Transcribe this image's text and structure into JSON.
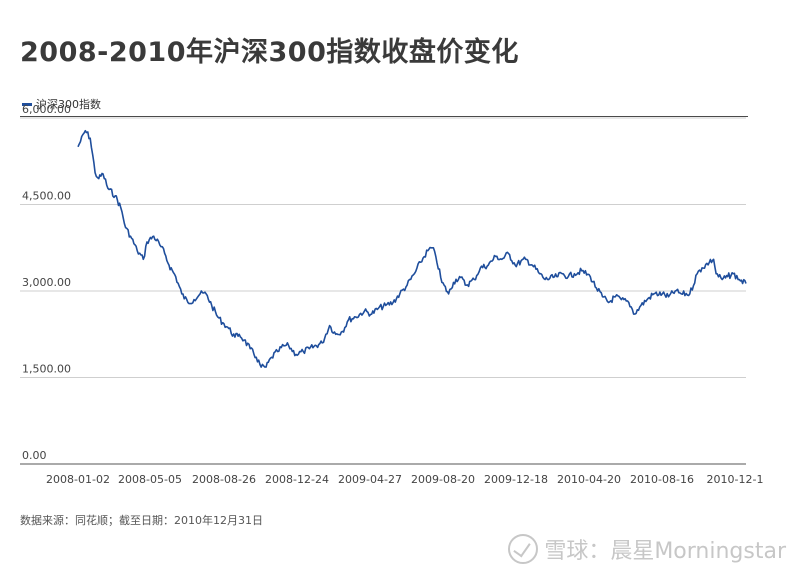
{
  "title": "2008-2010年沪深300指数收盘价变化",
  "source": "数据来源：同花顺；截至日期：2010年12月31日",
  "watermark": "雪球：晨星Morningstar",
  "chart_data": {
    "type": "line",
    "title": "2008-2010年沪深300指数收盘价变化",
    "xlabel": "",
    "ylabel": "",
    "ylim": [
      0,
      6000
    ],
    "yticks": [
      0,
      1500,
      3000,
      4500,
      6000
    ],
    "ytick_labels": [
      "0.00",
      "1,500.00",
      "3,000.00",
      "4,500.00",
      "6,000.00"
    ],
    "xtick_labels": [
      "2008-01-02",
      "2008-05-05",
      "2008-08-26",
      "2008-12-24",
      "2009-04-27",
      "2009-08-20",
      "2009-12-18",
      "2010-04-20",
      "2010-08-16",
      "2010-12-1"
    ],
    "grid": true,
    "legend_position": "top-left",
    "line_color": "#1f4e9c",
    "series": [
      {
        "name": "沪深300指数",
        "points": [
          [
            "2008-01-02",
            5500
          ],
          [
            "2008-01-14",
            5780
          ],
          [
            "2008-01-22",
            5650
          ],
          [
            "2008-01-30",
            5050
          ],
          [
            "2008-02-05",
            4950
          ],
          [
            "2008-02-12",
            5030
          ],
          [
            "2008-02-20",
            4780
          ],
          [
            "2008-03-03",
            4650
          ],
          [
            "2008-03-12",
            4450
          ],
          [
            "2008-03-20",
            4100
          ],
          [
            "2008-03-28",
            3950
          ],
          [
            "2008-04-08",
            3700
          ],
          [
            "2008-04-18",
            3550
          ],
          [
            "2008-04-24",
            3850
          ],
          [
            "2008-05-05",
            3950
          ],
          [
            "2008-05-15",
            3800
          ],
          [
            "2008-05-23",
            3650
          ],
          [
            "2008-05-30",
            3450
          ],
          [
            "2008-06-10",
            3250
          ],
          [
            "2008-06-20",
            2950
          ],
          [
            "2008-06-30",
            2800
          ],
          [
            "2008-07-10",
            2850
          ],
          [
            "2008-07-20",
            2950
          ],
          [
            "2008-07-30",
            2950
          ],
          [
            "2008-08-08",
            2750
          ],
          [
            "2008-08-18",
            2550
          ],
          [
            "2008-08-26",
            2450
          ],
          [
            "2008-09-05",
            2350
          ],
          [
            "2008-09-15",
            2200
          ],
          [
            "2008-09-22",
            2250
          ],
          [
            "2008-09-30",
            2150
          ],
          [
            "2008-10-10",
            2000
          ],
          [
            "2008-10-20",
            1850
          ],
          [
            "2008-10-28",
            1680
          ],
          [
            "2008-11-05",
            1680
          ],
          [
            "2008-11-14",
            1850
          ],
          [
            "2008-11-24",
            1950
          ],
          [
            "2008-12-04",
            2050
          ],
          [
            "2008-12-12",
            2050
          ],
          [
            "2008-12-24",
            1900
          ],
          [
            "2009-01-05",
            1950
          ],
          [
            "2009-01-15",
            2000
          ],
          [
            "2009-02-05",
            2100
          ],
          [
            "2009-02-17",
            2400
          ],
          [
            "2009-02-27",
            2250
          ],
          [
            "2009-03-10",
            2300
          ],
          [
            "2009-03-20",
            2500
          ],
          [
            "2009-04-01",
            2550
          ],
          [
            "2009-04-15",
            2650
          ],
          [
            "2009-04-27",
            2600
          ],
          [
            "2009-05-08",
            2700
          ],
          [
            "2009-05-20",
            2750
          ],
          [
            "2009-06-01",
            2800
          ],
          [
            "2009-06-12",
            2950
          ],
          [
            "2009-06-24",
            3100
          ],
          [
            "2009-07-06",
            3300
          ],
          [
            "2009-07-16",
            3500
          ],
          [
            "2009-07-28",
            3700
          ],
          [
            "2009-08-04",
            3750
          ],
          [
            "2009-08-10",
            3600
          ],
          [
            "2009-08-20",
            3150
          ],
          [
            "2009-08-31",
            2950
          ],
          [
            "2009-09-08",
            3150
          ],
          [
            "2009-09-18",
            3250
          ],
          [
            "2009-09-29",
            3100
          ],
          [
            "2009-10-12",
            3200
          ],
          [
            "2009-10-22",
            3400
          ],
          [
            "2009-11-04",
            3450
          ],
          [
            "2009-11-16",
            3600
          ],
          [
            "2009-11-26",
            3550
          ],
          [
            "2009-12-07",
            3650
          ],
          [
            "2009-12-18",
            3450
          ],
          [
            "2010-01-04",
            3550
          ],
          [
            "2010-01-15",
            3450
          ],
          [
            "2010-01-27",
            3300
          ],
          [
            "2010-02-05",
            3200
          ],
          [
            "2010-02-24",
            3250
          ],
          [
            "2010-03-05",
            3300
          ],
          [
            "2010-03-15",
            3250
          ],
          [
            "2010-03-25",
            3300
          ],
          [
            "2010-04-06",
            3350
          ],
          [
            "2010-04-20",
            3250
          ],
          [
            "2010-04-30",
            3050
          ],
          [
            "2010-05-10",
            2900
          ],
          [
            "2010-05-20",
            2800
          ],
          [
            "2010-05-31",
            2900
          ],
          [
            "2010-06-10",
            2850
          ],
          [
            "2010-06-22",
            2800
          ],
          [
            "2010-07-02",
            2600
          ],
          [
            "2010-07-12",
            2750
          ],
          [
            "2010-07-22",
            2850
          ],
          [
            "2010-08-02",
            2950
          ],
          [
            "2010-08-16",
            2950
          ],
          [
            "2010-08-26",
            2900
          ],
          [
            "2010-09-06",
            3000
          ],
          [
            "2010-09-16",
            2950
          ],
          [
            "2010-09-30",
            2950
          ],
          [
            "2010-10-12",
            3300
          ],
          [
            "2010-10-20",
            3400
          ],
          [
            "2010-11-01",
            3500
          ],
          [
            "2010-11-08",
            3550
          ],
          [
            "2010-11-12",
            3300
          ],
          [
            "2010-11-22",
            3200
          ],
          [
            "2010-12-01",
            3250
          ],
          [
            "2010-12-10",
            3300
          ],
          [
            "2010-12-20",
            3200
          ],
          [
            "2010-12-31",
            3130
          ]
        ]
      }
    ]
  }
}
